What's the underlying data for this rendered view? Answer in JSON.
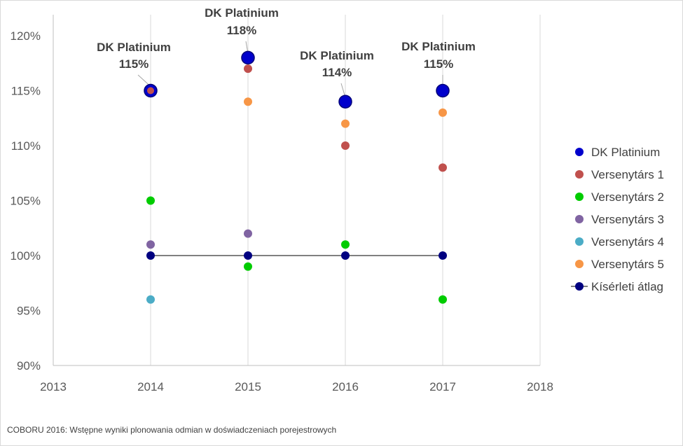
{
  "chart_data": {
    "type": "scatter",
    "x_ticks": [
      "2013",
      "2014",
      "2015",
      "2016",
      "2017",
      "2018"
    ],
    "y_ticks": [
      "90%",
      "95%",
      "100%",
      "105%",
      "110%",
      "115%",
      "120%"
    ],
    "xlim": [
      2013,
      2018
    ],
    "ylim": [
      90,
      121
    ],
    "grid": "vertical",
    "legend_position": "right",
    "series": [
      {
        "name": "Versenytárs 1",
        "color": "#c0504d",
        "marker": "circle",
        "x": [
          2014,
          2015,
          2016,
          2017
        ],
        "y": [
          115,
          117,
          110,
          108
        ]
      },
      {
        "name": "Versenytárs 2",
        "color": "#00cc00",
        "marker": "circle",
        "x": [
          2014,
          2015,
          2016,
          2017
        ],
        "y": [
          105,
          99,
          101,
          96
        ]
      },
      {
        "name": "Versenytárs 3",
        "color": "#8064a2",
        "marker": "circle",
        "x": [
          2014,
          2015
        ],
        "y": [
          101,
          102
        ]
      },
      {
        "name": "Versenytárs 4",
        "color": "#4bacc6",
        "marker": "circle",
        "x": [
          2014
        ],
        "y": [
          96
        ]
      },
      {
        "name": "Versenytárs 5",
        "color": "#f79646",
        "marker": "circle",
        "x": [
          2015,
          2016,
          2017
        ],
        "y": [
          114,
          112,
          113
        ]
      },
      {
        "name": "Kísérleti átlag",
        "color": "#000080",
        "marker": "circle-line",
        "x": [
          2014,
          2015,
          2016,
          2017
        ],
        "y": [
          100,
          100,
          100,
          100
        ]
      },
      {
        "name": "DK Platinium",
        "color": "#0000cc",
        "marker": "large-circle",
        "x": [
          2014,
          2015,
          2016,
          2017
        ],
        "y": [
          115,
          118,
          114,
          115
        ],
        "labels": [
          {
            "line1": "DK Platinium",
            "line2": "115%"
          },
          {
            "line1": "DK Platinium",
            "line2": "118%"
          },
          {
            "line1": "DK Platinium",
            "line2": "114%"
          },
          {
            "line1": "DK Platinium",
            "line2": "115%"
          }
        ]
      }
    ],
    "legend_order": [
      "DK Platinium",
      "Versenytárs 1",
      "Versenytárs 2",
      "Versenytárs 3",
      "Versenytárs 4",
      "Versenytárs 5",
      "Kísérleti átlag"
    ]
  },
  "source_note": "COBORU 2016:  Wstępne wyniki plonowania odmian w doświadczeniach porejestrowych"
}
